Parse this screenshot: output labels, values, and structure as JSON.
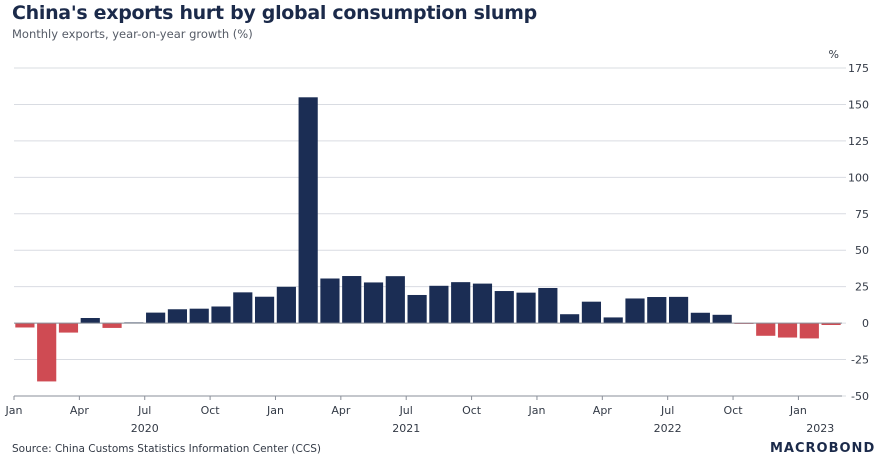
{
  "chart_data": {
    "type": "bar",
    "title": "China's exports hurt by global consumption slump",
    "subtitle": "Monthly exports, year-on-year growth (%)",
    "ylabel": "%",
    "ylim": [
      -50,
      175
    ],
    "y_ticks": [
      175,
      150,
      125,
      100,
      75,
      50,
      25,
      0,
      -25,
      -50
    ],
    "grid": true,
    "month_labels": [
      "Jan",
      "Apr",
      "Jul",
      "Oct",
      "Jan",
      "Apr",
      "Jul",
      "Oct",
      "Jan",
      "Apr",
      "Jul",
      "Oct",
      "Jan"
    ],
    "month_label_indices": [
      0,
      3,
      6,
      9,
      12,
      15,
      18,
      21,
      24,
      27,
      30,
      33,
      36
    ],
    "year_labels": [
      "2020",
      "2021",
      "2022",
      "2023"
    ],
    "year_label_indices": [
      6,
      18,
      30,
      37
    ],
    "categories": [
      "2020-01",
      "2020-02",
      "2020-03",
      "2020-04",
      "2020-05",
      "2020-06",
      "2020-07",
      "2020-08",
      "2020-09",
      "2020-10",
      "2020-11",
      "2020-12",
      "2021-01",
      "2021-02",
      "2021-03",
      "2021-04",
      "2021-05",
      "2021-06",
      "2021-07",
      "2021-08",
      "2021-09",
      "2021-10",
      "2021-11",
      "2021-12",
      "2022-01",
      "2022-02",
      "2022-03",
      "2022-04",
      "2022-05",
      "2022-06",
      "2022-07",
      "2022-08",
      "2022-09",
      "2022-10",
      "2022-11",
      "2022-12",
      "2023-01",
      "2023-02"
    ],
    "values": [
      -3,
      -40,
      -6.5,
      3.5,
      -3.3,
      0.5,
      7.2,
      9.5,
      9.9,
      11.4,
      21.1,
      18.1,
      24.9,
      154.9,
      30.6,
      32.3,
      27.9,
      32.2,
      19.3,
      25.6,
      28.1,
      27.1,
      22,
      20.9,
      24.1,
      6.1,
      14.7,
      3.9,
      16.9,
      17.9,
      18,
      7.1,
      5.7,
      -0.3,
      -8.7,
      -9.9,
      -10.5,
      -1.3
    ],
    "positive_color": "#1b2d54",
    "negative_color": "#cf4b53"
  },
  "source": "Source: China Customs Statistics Information Center (CCS)",
  "brand": "MACROBOND"
}
